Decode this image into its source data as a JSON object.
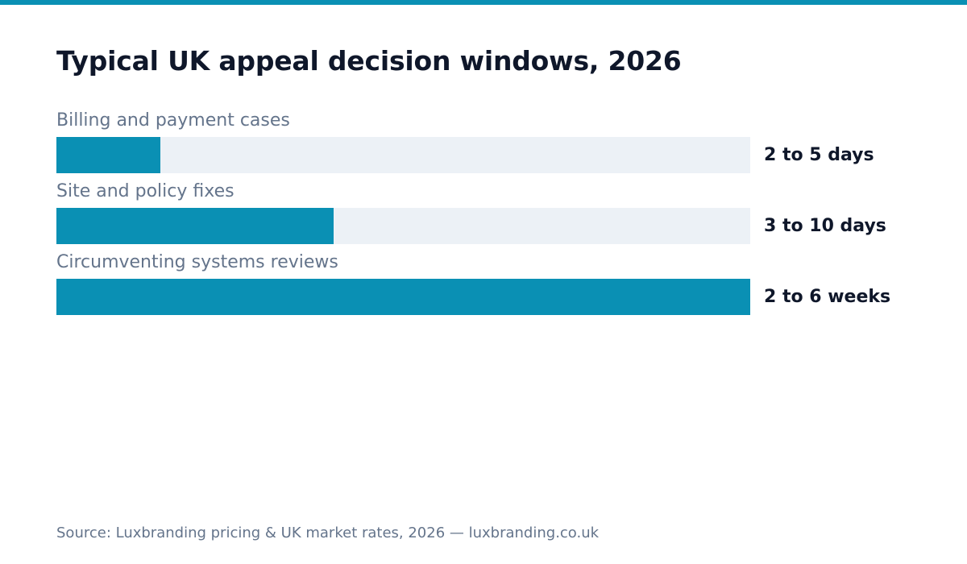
{
  "accent_color": "#0a90b4",
  "track_color": "#ecf1f6",
  "chart_data": {
    "type": "bar",
    "orientation": "horizontal",
    "title": "Typical UK appeal decision windows, 2026",
    "categories": [
      "Billing and payment cases",
      "Site and policy fixes",
      "Circumventing systems reviews"
    ],
    "value_labels": [
      "2 to 5 days",
      "3 to 10 days",
      "2 to 6 weeks"
    ],
    "relative_length": [
      0.15,
      0.4,
      1.0
    ],
    "xlabel": "",
    "ylabel": "",
    "grid": false,
    "legend": "none"
  },
  "footer": {
    "source": "Source: Luxbranding pricing & UK market rates, 2026 — luxbranding.co.uk"
  }
}
